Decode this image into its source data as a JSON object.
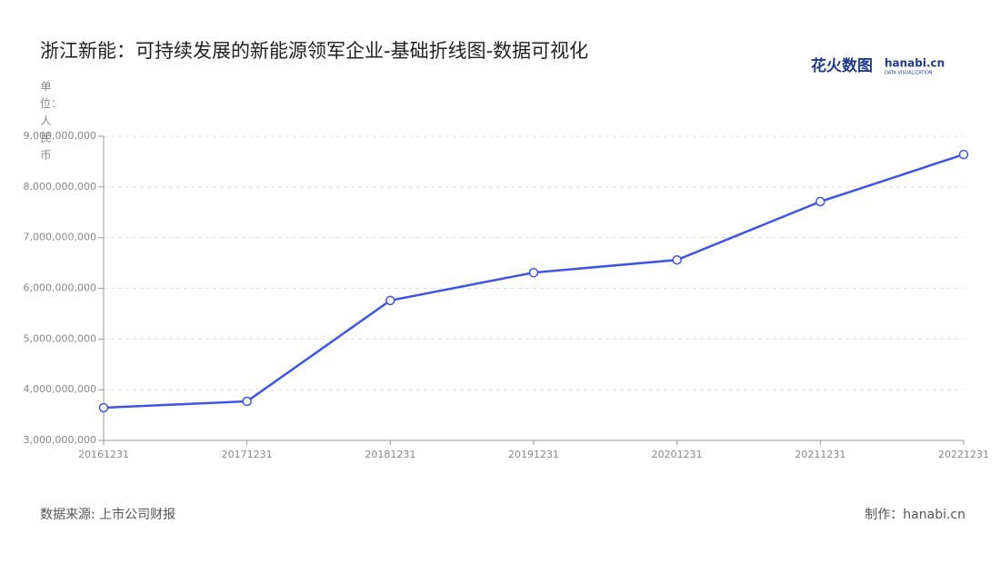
{
  "chart_data": {
    "type": "line",
    "title": "浙江新能：可持续发展的新能源领军企业-基础折线图-数据可视化",
    "y_label": "单位：人民币",
    "categories": [
      "20161231",
      "20171231",
      "20181231",
      "20191231",
      "20201231",
      "20211231",
      "20221231"
    ],
    "series": [
      {
        "name": "浙江新能",
        "color": "#3b55e6",
        "values": [
          3645000000,
          3770000000,
          5760000000,
          6310000000,
          6560000000,
          7710000000,
          8640000000
        ]
      }
    ],
    "ylim": [
      3000000000,
      9000000000
    ],
    "yticks": [
      {
        "value": 3000000000,
        "label": "3,000,000,000"
      },
      {
        "value": 4000000000,
        "label": "4,000,000,000"
      },
      {
        "value": 5000000000,
        "label": "5,000,000,000"
      },
      {
        "value": 6000000000,
        "label": "6,000,000,000"
      },
      {
        "value": 7000000000,
        "label": "7,000,000,000"
      },
      {
        "value": 8000000000,
        "label": "8,000,000,000"
      },
      {
        "value": 9000000000,
        "label": "9,000,000,000"
      }
    ],
    "grid": true,
    "source": "数据来源: 上市公司财报",
    "credit": "制作：hanabi.cn",
    "logo": {
      "cn": "花火数图",
      "en": "hanabi.cn",
      "sub": "DATA VISUALIZATION"
    }
  }
}
